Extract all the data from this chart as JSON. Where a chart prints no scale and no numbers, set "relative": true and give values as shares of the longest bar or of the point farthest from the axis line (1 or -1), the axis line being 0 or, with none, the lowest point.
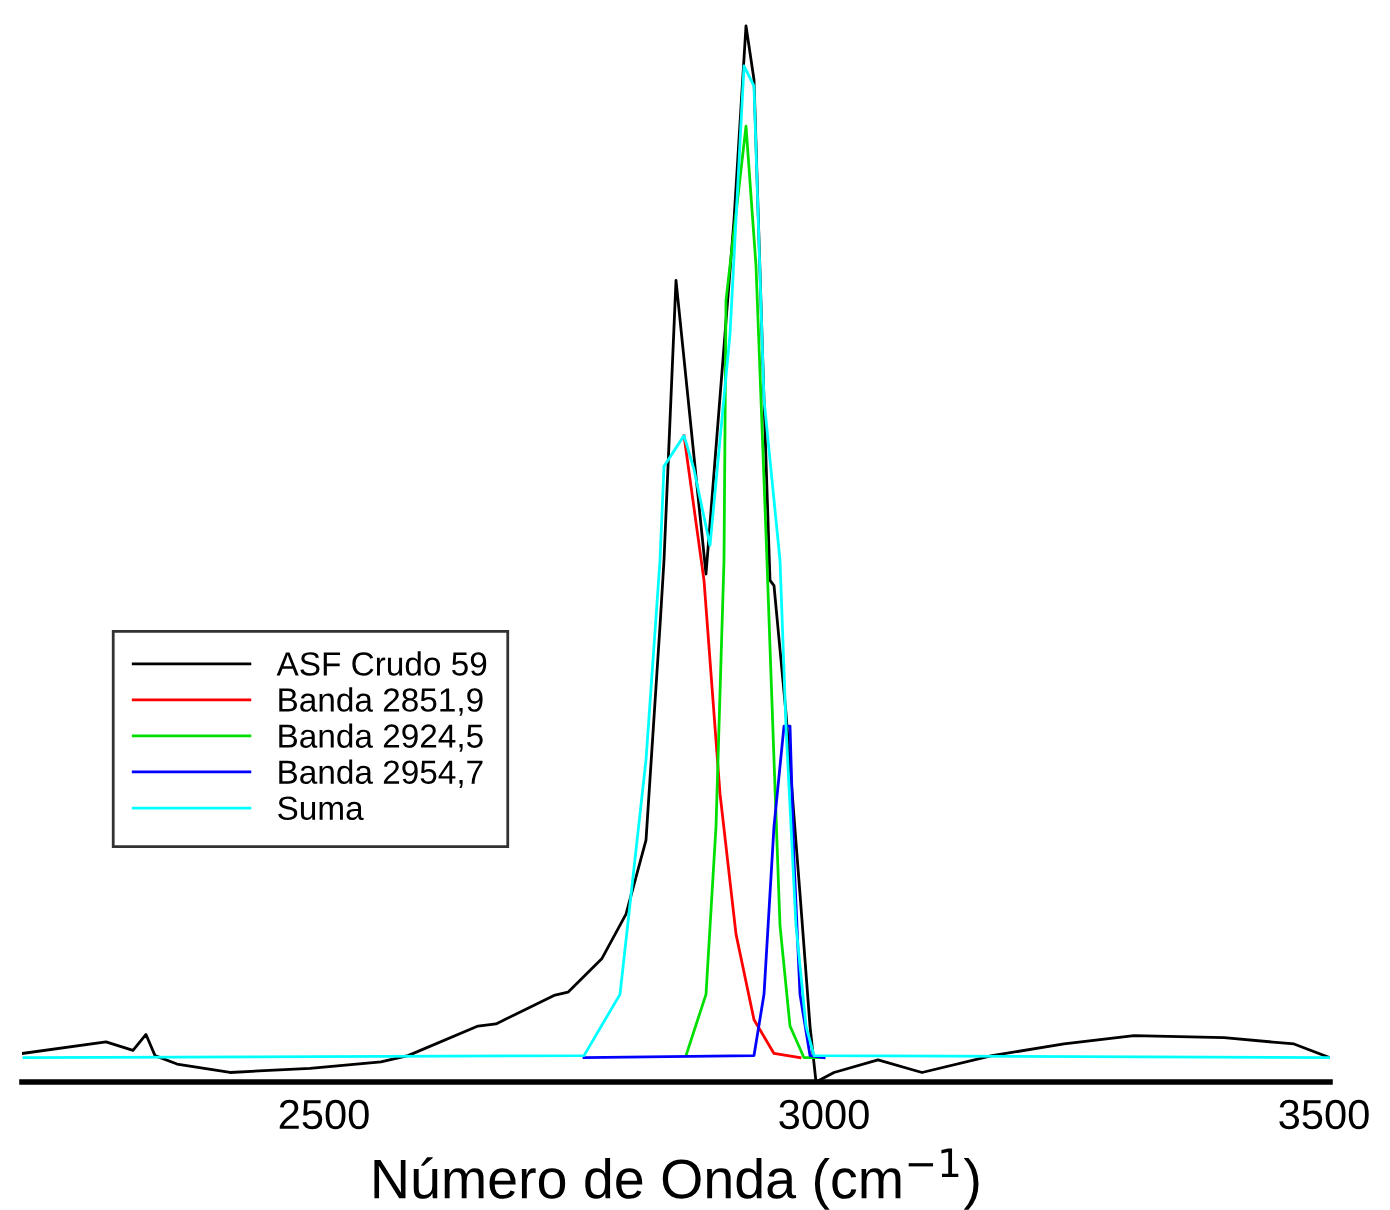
{
  "chart_data": {
    "type": "line",
    "relative": true,
    "xlabel": "Número de Onda (cm$^{−1}$)",
    "xlim": [
      2198,
      3506
    ],
    "xticks": [
      2500,
      3000,
      3500
    ],
    "tick_labels": "x",
    "grid": false,
    "legend": "left",
    "marker": "none",
    "line_style": "solid",
    "series": [
      {
        "name": "ASF Crudo 59",
        "color": "#000000",
        "x": [
          2198,
          2282,
          2309,
          2322,
          2331,
          2353,
          2406,
          2486,
          2557,
          2584,
          2654,
          2672,
          2730,
          2744,
          2778,
          2802,
          2822,
          2836,
          2840,
          2852,
          2882,
          2910,
          2922,
          2930,
          2940,
          2946,
          2950,
          2962,
          2976,
          2986,
          2992,
          3010,
          3054,
          3098,
          3168,
          3240,
          3310,
          3400,
          3470,
          3506
        ],
        "values": [
          0.027,
          0.038,
          0.03,
          0.045,
          0.025,
          0.017,
          0.009,
          0.013,
          0.019,
          0.025,
          0.053,
          0.055,
          0.082,
          0.085,
          0.117,
          0.159,
          0.229,
          0.432,
          0.494,
          0.759,
          0.481,
          0.816,
          1.0,
          0.949,
          0.646,
          0.475,
          0.47,
          0.349,
          0.178,
          0.053,
          0.0,
          0.009,
          0.021,
          0.009,
          0.025,
          0.036,
          0.044,
          0.042,
          0.036,
          0.023
        ]
      },
      {
        "name": "Banda 2851,9",
        "color": "#ff0000",
        "x": [
          2860,
          2880,
          2896,
          2912,
          2930,
          2950,
          2976
        ],
        "values": [
          0.612,
          0.475,
          0.273,
          0.14,
          0.059,
          0.027,
          0.023
        ]
      },
      {
        "name": "Banda 2924,5",
        "color": "#00e000",
        "x": [
          2862,
          2882,
          2892,
          2900,
          2902,
          2922,
          2932,
          2942,
          2950,
          2956,
          2966,
          2980,
          3000
        ],
        "values": [
          0.025,
          0.083,
          0.242,
          0.494,
          0.74,
          0.905,
          0.773,
          0.519,
          0.305,
          0.148,
          0.053,
          0.023,
          0.023
        ]
      },
      {
        "name": "Banda 2954,7",
        "color": "#0000ff",
        "x": [
          2760,
          2930,
          2940,
          2950,
          2960,
          2966,
          2970,
          2976,
          2986,
          3000
        ],
        "values": [
          0.023,
          0.025,
          0.083,
          0.242,
          0.337,
          0.337,
          0.21,
          0.083,
          0.025,
          0.023
        ]
      },
      {
        "name": "Suma",
        "color": "#00ffff",
        "x": [
          2200,
          2760,
          2796,
          2822,
          2836,
          2840,
          2860,
          2870,
          2886,
          2906,
          2920,
          2930,
          2940,
          2956,
          2962,
          2972,
          2982,
          2990,
          3506
        ],
        "values": [
          0.023,
          0.025,
          0.083,
          0.305,
          0.494,
          0.583,
          0.612,
          0.58,
          0.508,
          0.708,
          0.962,
          0.943,
          0.646,
          0.494,
          0.337,
          0.148,
          0.053,
          0.025,
          0.023
        ]
      }
    ]
  }
}
